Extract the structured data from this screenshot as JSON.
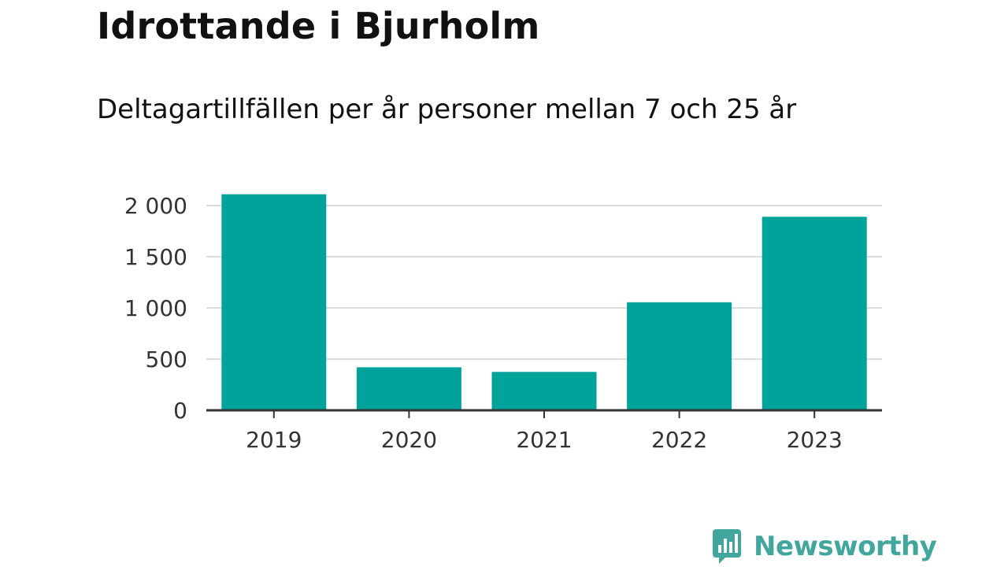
{
  "title": "Idrottande i Bjurholm",
  "subtitle": "Deltagartillfällen per år personer mellan 7 och 25 år",
  "logo": {
    "text": "Newsworthy",
    "icon": "bar-chart-speech-bubble-icon"
  },
  "colors": {
    "bar": "#00a39a",
    "grid": "#dddddd",
    "axis": "#333333",
    "logo": "#43a69c"
  },
  "chart_data": {
    "type": "bar",
    "title": "Idrottande i Bjurholm",
    "subtitle": "Deltagartillfällen per år personer mellan 7 och 25 år",
    "categories": [
      "2019",
      "2020",
      "2021",
      "2022",
      "2023"
    ],
    "values": [
      2110,
      420,
      375,
      1055,
      1890
    ],
    "ylim": [
      0,
      2000
    ],
    "yticks": [
      0,
      500,
      1000,
      1500,
      2000
    ],
    "ytick_labels": [
      "0",
      "500",
      "1 000",
      "1 500",
      "2 000"
    ],
    "grid": true,
    "legend": "none"
  }
}
